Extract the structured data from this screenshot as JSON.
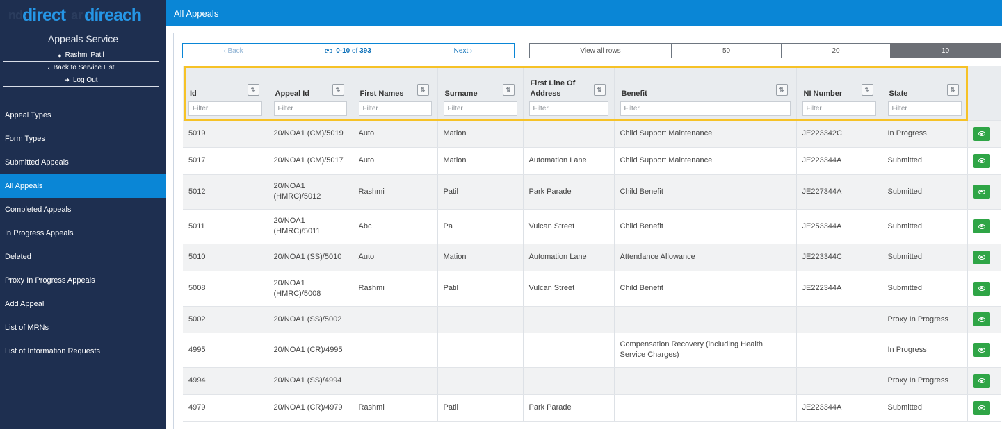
{
  "logo": {
    "text_faint_left": "nd",
    "text_main": "direct",
    "text_faint_mid": "ar",
    "text_main2": "díreach"
  },
  "service": "Appeals Service",
  "user": {
    "name": "Rashmi Patil",
    "back": "Back to Service List",
    "logout": "Log Out"
  },
  "nav": [
    "Appeal Types",
    "Form Types",
    "Submitted Appeals",
    "All Appeals",
    "Completed Appeals",
    "In Progress Appeals",
    "Deleted",
    "Proxy In Progress Appeals",
    "Add Appeal",
    "List of MRNs",
    "List of Information Requests"
  ],
  "header": {
    "title": "All Appeals"
  },
  "pager": {
    "back": "Back",
    "count": "0-10",
    "of": "of",
    "total": "393",
    "next": "Next"
  },
  "rows_options": [
    "View all rows",
    "50",
    "20",
    "10"
  ],
  "columns": [
    "Id",
    "Appeal Id",
    "First Names",
    "Surname",
    "First Line Of Address",
    "Benefit",
    "NI Number",
    "State"
  ],
  "filter_placeholder": "Filter",
  "rows": [
    [
      "5019",
      "20/NOA1 (CM)/5019",
      "Auto",
      "Mation",
      "",
      "Child Support Maintenance",
      "JE223342C",
      "In Progress"
    ],
    [
      "5017",
      "20/NOA1 (CM)/5017",
      "Auto",
      "Mation",
      "Automation Lane",
      "Child Support Maintenance",
      "JE223344A",
      "Submitted"
    ],
    [
      "5012",
      "20/NOA1 (HMRC)/5012",
      "Rashmi",
      "Patil",
      "Park Parade",
      "Child Benefit",
      "JE227344A",
      "Submitted"
    ],
    [
      "5011",
      "20/NOA1 (HMRC)/5011",
      "Abc",
      "Pa",
      "Vulcan Street",
      "Child Benefit",
      "JE253344A",
      "Submitted"
    ],
    [
      "5010",
      "20/NOA1 (SS)/5010",
      "Auto",
      "Mation",
      "Automation Lane",
      "Attendance Allowance",
      "JE223344C",
      "Submitted"
    ],
    [
      "5008",
      "20/NOA1 (HMRC)/5008",
      "Rashmi",
      "Patil",
      "Vulcan Street",
      "Child Benefit",
      "JE222344A",
      "Submitted"
    ],
    [
      "5002",
      "20/NOA1 (SS)/5002",
      "",
      "",
      "",
      "",
      "",
      "Proxy In Progress"
    ],
    [
      "4995",
      "20/NOA1 (CR)/4995",
      "",
      "",
      "",
      "Compensation Recovery (including Health Service Charges)",
      "",
      "In Progress"
    ],
    [
      "4994",
      "20/NOA1 (SS)/4994",
      "",
      "",
      "",
      "",
      "",
      "Proxy In Progress"
    ],
    [
      "4979",
      "20/NOA1 (CR)/4979",
      "Rashmi",
      "Patil",
      "Park Parade",
      "",
      "JE223344A",
      "Submitted"
    ]
  ]
}
